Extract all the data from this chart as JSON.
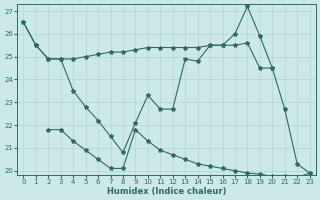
{
  "xlabel": "Humidex (Indice chaleur)",
  "xlim": [
    -0.5,
    23.5
  ],
  "ylim": [
    19.8,
    27.3
  ],
  "yticks": [
    20,
    21,
    22,
    23,
    24,
    25,
    26,
    27
  ],
  "xticks": [
    0,
    1,
    2,
    3,
    4,
    5,
    6,
    7,
    8,
    9,
    10,
    11,
    12,
    13,
    14,
    15,
    16,
    17,
    18,
    19,
    20,
    21,
    22,
    23
  ],
  "bg_color": "#cde8e8",
  "line_color": "#2d6b62",
  "grid_color": "#b8d8d8",
  "s1x": [
    0,
    1,
    2,
    3,
    4,
    5,
    6,
    7,
    8,
    9,
    10,
    11,
    12,
    13,
    14,
    15,
    16,
    17,
    18,
    19,
    20
  ],
  "s1y": [
    26.5,
    25.5,
    24.9,
    24.9,
    24.9,
    25.0,
    25.1,
    25.2,
    25.2,
    25.3,
    25.4,
    25.4,
    25.4,
    25.4,
    25.4,
    25.5,
    25.5,
    25.5,
    25.6,
    24.5,
    24.5
  ],
  "s2x": [
    0,
    1,
    2,
    3,
    4,
    5,
    6,
    7,
    8,
    9,
    10,
    11,
    12,
    13,
    14,
    15,
    16,
    17,
    18,
    19,
    20,
    21,
    22,
    23
  ],
  "s2y": [
    26.5,
    25.5,
    24.9,
    24.9,
    23.5,
    22.8,
    22.2,
    21.5,
    20.8,
    22.1,
    23.3,
    22.7,
    22.7,
    24.9,
    24.8,
    25.5,
    25.5,
    26.0,
    27.2,
    25.9,
    24.5,
    22.7,
    20.3,
    19.9
  ],
  "s3x": [
    2,
    3,
    4,
    5,
    6,
    7,
    8,
    9,
    10,
    11,
    12,
    13,
    14,
    15,
    16,
    17,
    18,
    19,
    20,
    21,
    22,
    23
  ],
  "s3y": [
    21.8,
    21.8,
    21.3,
    20.9,
    20.5,
    20.1,
    20.1,
    21.8,
    21.3,
    20.9,
    20.7,
    20.5,
    20.3,
    20.2,
    20.1,
    20.0,
    19.9,
    19.85,
    19.75,
    19.75,
    19.7,
    19.9
  ]
}
